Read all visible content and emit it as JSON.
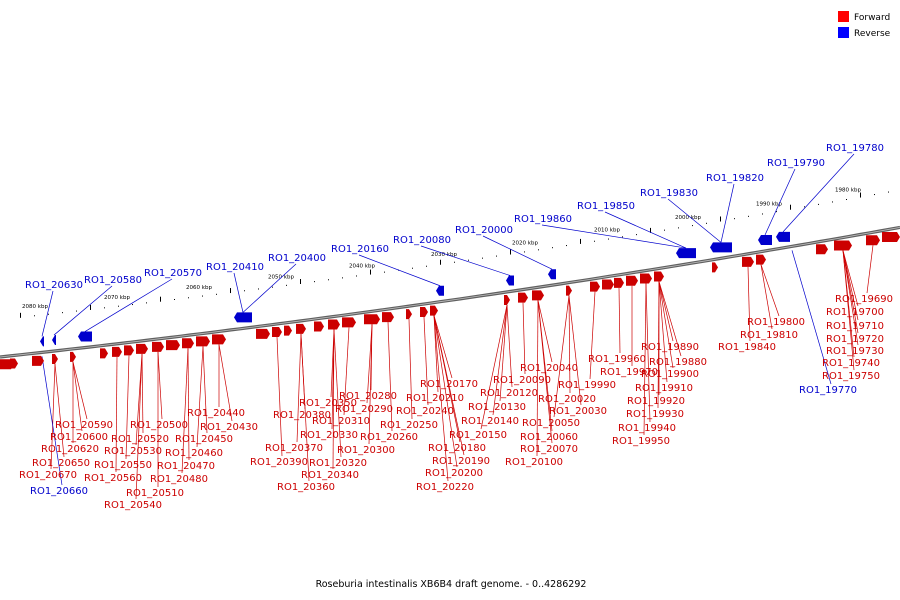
{
  "legend": [
    {
      "label": "Forward",
      "color": "#ff0000"
    },
    {
      "label": "Reverse",
      "color": "#0000ff"
    }
  ],
  "caption": "Roseburia intestinalis XB6B4 draft genome. - 0..4286292",
  "scale_labels": [
    "2080 kbp",
    "2070 kbp",
    "2060 kbp",
    "2050 kbp",
    "2040 kbp",
    "2030 kbp",
    "2020 kbp",
    "2010 kbp",
    "2000 kbp",
    "1990 kbp",
    "1980 kbp"
  ],
  "genes_above": [
    "RO1_20630",
    "RO1_20580",
    "RO1_20570",
    "RO1_20410",
    "RO1_20400",
    "RO1_20160",
    "RO1_20080",
    "RO1_20000",
    "RO1_19860",
    "RO1_19850",
    "RO1_19830",
    "RO1_19820",
    "RO1_19790",
    "RO1_19780"
  ],
  "genes_below": [
    "RO1_20590",
    "RO1_20600",
    "RO1_20620",
    "RO1_20650",
    "RO1_20670",
    "RO1_20660",
    "RO1_20520",
    "RO1_20530",
    "RO1_20550",
    "RO1_20560",
    "RO1_20510",
    "RO1_20540",
    "RO1_20500",
    "RO1_20440",
    "RO1_20430",
    "RO1_20450",
    "RO1_20460",
    "RO1_20470",
    "RO1_20480",
    "RO1_20350",
    "RO1_20380",
    "RO1_20370",
    "RO1_20390",
    "RO1_20360",
    "RO1_20310",
    "RO1_20330",
    "RO1_20320",
    "RO1_20340",
    "RO1_20280",
    "RO1_20290",
    "RO1_20300",
    "RO1_20260",
    "RO1_20250",
    "RO1_20240",
    "RO1_20210",
    "RO1_20170",
    "RO1_20180",
    "RO1_20190",
    "RO1_20200",
    "RO1_20220",
    "RO1_20150",
    "RO1_20140",
    "RO1_20130",
    "RO1_20120",
    "RO1_20090",
    "RO1_20040",
    "RO1_20020",
    "RO1_20030",
    "RO1_20050",
    "RO1_20060",
    "RO1_20070",
    "RO1_20100",
    "RO1_19990",
    "RO1_19960",
    "RO1_19970",
    "RO1_19890",
    "RO1_19880",
    "RO1_19900",
    "RO1_19910",
    "RO1_19920",
    "RO1_19930",
    "RO1_19940",
    "RO1_19950",
    "RO1_19840",
    "RO1_19800",
    "RO1_19810",
    "RO1_19690",
    "RO1_19700",
    "RO1_19710",
    "RO1_19720",
    "RO1_19730",
    "RO1_19740",
    "RO1_19750",
    "RO1_19770"
  ]
}
